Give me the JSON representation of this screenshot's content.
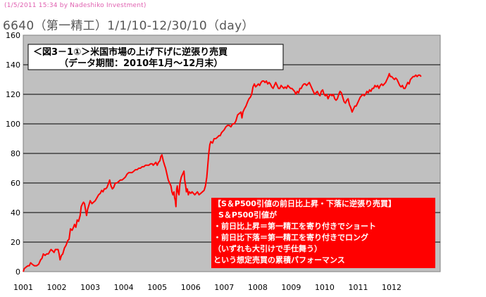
{
  "stamp": "(1/5/2011 15:34 by Nadeshiko Investment)",
  "title": "6640（第一精工）1/1/10-12/30/10（day）",
  "colors": {
    "plot_bg": "#c0c0c0",
    "line": "#ff0000",
    "note_bg": "#ff0000",
    "grid": "#000000"
  },
  "chart_data": {
    "type": "line",
    "title_box": [
      "＜図3－1①＞米国市場の上げ下げに逆張り売買",
      "（データ期間：2010年1月～12月末）"
    ],
    "x_ticks": [
      "1001",
      "1002",
      "1003",
      "1004",
      "1005",
      "1006",
      "1007",
      "1008",
      "1009",
      "1010",
      "1011",
      "1012"
    ],
    "y_ticks": [
      "0",
      "20",
      "40",
      "60",
      "80",
      "100",
      "120",
      "140",
      "160"
    ],
    "ylim": [
      0,
      160
    ],
    "xlim": [
      1,
      13.45
    ],
    "grid": "horizontal",
    "note": [
      "【S＆P500引値の前日比上昇・下落に逆張り売買】",
      "S＆P500引値が",
      "・前日比上昇＝第一精工を寄り付きでショート",
      "・前日比下落＝第一精工を寄り付きでロング",
      "（いずれも大引けで手仕舞う）",
      "という想定売買の累積パフォーマンス"
    ],
    "series": [
      {
        "points": [
          [
            1.0,
            0
          ],
          [
            1.03,
            2
          ],
          [
            1.08,
            3
          ],
          [
            1.14,
            4
          ],
          [
            1.18,
            4
          ],
          [
            1.22,
            6
          ],
          [
            1.27,
            5
          ],
          [
            1.33,
            4
          ],
          [
            1.4,
            4
          ],
          [
            1.46,
            5
          ],
          [
            1.52,
            8
          ],
          [
            1.56,
            9
          ],
          [
            1.6,
            12
          ],
          [
            1.65,
            11
          ],
          [
            1.7,
            12
          ],
          [
            1.75,
            12
          ],
          [
            1.8,
            14
          ],
          [
            1.83,
            15
          ],
          [
            1.88,
            14
          ],
          [
            1.92,
            13
          ],
          [
            1.96,
            15
          ],
          [
            2.0,
            15
          ],
          [
            2.04,
            15
          ],
          [
            2.07,
            12
          ],
          [
            2.1,
            8
          ],
          [
            2.14,
            11
          ],
          [
            2.18,
            12
          ],
          [
            2.23,
            16
          ],
          [
            2.28,
            18
          ],
          [
            2.33,
            21
          ],
          [
            2.37,
            22
          ],
          [
            2.41,
            29
          ],
          [
            2.46,
            28
          ],
          [
            2.5,
            30
          ],
          [
            2.53,
            32
          ],
          [
            2.57,
            30
          ],
          [
            2.61,
            35
          ],
          [
            2.65,
            34
          ],
          [
            2.7,
            38
          ],
          [
            2.73,
            44
          ],
          [
            2.77,
            46
          ],
          [
            2.8,
            47
          ],
          [
            2.83,
            46
          ],
          [
            2.86,
            42
          ],
          [
            2.89,
            38
          ],
          [
            2.92,
            42
          ],
          [
            2.96,
            45
          ],
          [
            3.0,
            48
          ],
          [
            3.05,
            46
          ],
          [
            3.1,
            47
          ],
          [
            3.15,
            48
          ],
          [
            3.2,
            50
          ],
          [
            3.25,
            52
          ],
          [
            3.3,
            53
          ],
          [
            3.34,
            55
          ],
          [
            3.38,
            54
          ],
          [
            3.42,
            56
          ],
          [
            3.46,
            56
          ],
          [
            3.5,
            57
          ],
          [
            3.55,
            60
          ],
          [
            3.58,
            62
          ],
          [
            3.62,
            58
          ],
          [
            3.66,
            56
          ],
          [
            3.7,
            57
          ],
          [
            3.75,
            60
          ],
          [
            3.8,
            60
          ],
          [
            3.85,
            61
          ],
          [
            3.9,
            62
          ],
          [
            3.95,
            62
          ],
          [
            4.0,
            63
          ],
          [
            4.05,
            64
          ],
          [
            4.1,
            66
          ],
          [
            4.15,
            67
          ],
          [
            4.2,
            67
          ],
          [
            4.25,
            67
          ],
          [
            4.3,
            68
          ],
          [
            4.35,
            69
          ],
          [
            4.4,
            69
          ],
          [
            4.45,
            70
          ],
          [
            4.5,
            70
          ],
          [
            4.55,
            71
          ],
          [
            4.6,
            71
          ],
          [
            4.65,
            72
          ],
          [
            4.7,
            72
          ],
          [
            4.75,
            72
          ],
          [
            4.8,
            73
          ],
          [
            4.85,
            73
          ],
          [
            4.88,
            72
          ],
          [
            4.92,
            73
          ],
          [
            4.96,
            74
          ],
          [
            5.0,
            72
          ],
          [
            5.04,
            74
          ],
          [
            5.08,
            75
          ],
          [
            5.11,
            78
          ],
          [
            5.14,
            79
          ],
          [
            5.18,
            75
          ],
          [
            5.22,
            72
          ],
          [
            5.25,
            70
          ],
          [
            5.29,
            66
          ],
          [
            5.33,
            62
          ],
          [
            5.37,
            60
          ],
          [
            5.41,
            58
          ],
          [
            5.44,
            54
          ],
          [
            5.47,
            52
          ],
          [
            5.5,
            54
          ],
          [
            5.52,
            50
          ],
          [
            5.54,
            48
          ],
          [
            5.56,
            44
          ],
          [
            5.58,
            56
          ],
          [
            5.6,
            58
          ],
          [
            5.62,
            54
          ],
          [
            5.65,
            52
          ],
          [
            5.68,
            60
          ],
          [
            5.72,
            64
          ],
          [
            5.76,
            66
          ],
          [
            5.8,
            68
          ],
          [
            5.82,
            62
          ],
          [
            5.85,
            58
          ],
          [
            5.87,
            54
          ],
          [
            5.9,
            56
          ],
          [
            5.93,
            52
          ],
          [
            5.96,
            54
          ],
          [
            6.0,
            53
          ],
          [
            6.04,
            54
          ],
          [
            6.08,
            53
          ],
          [
            6.12,
            52
          ],
          [
            6.16,
            53
          ],
          [
            6.2,
            54
          ],
          [
            6.25,
            52
          ],
          [
            6.3,
            53
          ],
          [
            6.35,
            54
          ],
          [
            6.4,
            55
          ],
          [
            6.44,
            58
          ],
          [
            6.48,
            64
          ],
          [
            6.51,
            72
          ],
          [
            6.54,
            80
          ],
          [
            6.57,
            86
          ],
          [
            6.6,
            88
          ],
          [
            6.65,
            87
          ],
          [
            6.7,
            90
          ],
          [
            6.75,
            90
          ],
          [
            6.8,
            91
          ],
          [
            6.84,
            92
          ],
          [
            6.88,
            92
          ],
          [
            6.92,
            94
          ],
          [
            6.96,
            95
          ],
          [
            7.0,
            96
          ],
          [
            7.05,
            98
          ],
          [
            7.1,
            99
          ],
          [
            7.15,
            99
          ],
          [
            7.2,
            98
          ],
          [
            7.25,
            100
          ],
          [
            7.3,
            100
          ],
          [
            7.35,
            102
          ],
          [
            7.4,
            106
          ],
          [
            7.45,
            107
          ],
          [
            7.5,
            108
          ],
          [
            7.53,
            104
          ],
          [
            7.56,
            108
          ],
          [
            7.6,
            110
          ],
          [
            7.65,
            112
          ],
          [
            7.7,
            115
          ],
          [
            7.74,
            117
          ],
          [
            7.78,
            118
          ],
          [
            7.82,
            120
          ],
          [
            7.86,
            125
          ],
          [
            7.9,
            127
          ],
          [
            7.94,
            125
          ],
          [
            7.98,
            126
          ],
          [
            8.02,
            127
          ],
          [
            8.06,
            126
          ],
          [
            8.1,
            128
          ],
          [
            8.14,
            129
          ],
          [
            8.18,
            129
          ],
          [
            8.22,
            128
          ],
          [
            8.26,
            129
          ],
          [
            8.3,
            127
          ],
          [
            8.34,
            128
          ],
          [
            8.38,
            127
          ],
          [
            8.42,
            125
          ],
          [
            8.46,
            124
          ],
          [
            8.5,
            126
          ],
          [
            8.54,
            128
          ],
          [
            8.58,
            126
          ],
          [
            8.62,
            124
          ],
          [
            8.66,
            124
          ],
          [
            8.7,
            126
          ],
          [
            8.74,
            125
          ],
          [
            8.78,
            124
          ],
          [
            8.82,
            125
          ],
          [
            8.86,
            124
          ],
          [
            8.9,
            126
          ],
          [
            8.94,
            125
          ],
          [
            8.98,
            124
          ],
          [
            9.02,
            124
          ],
          [
            9.06,
            123
          ],
          [
            9.1,
            122
          ],
          [
            9.14,
            120
          ],
          [
            9.18,
            122
          ],
          [
            9.22,
            121
          ],
          [
            9.26,
            124
          ],
          [
            9.3,
            124
          ],
          [
            9.34,
            126
          ],
          [
            9.38,
            127
          ],
          [
            9.42,
            127
          ],
          [
            9.46,
            126
          ],
          [
            9.5,
            127
          ],
          [
            9.54,
            128
          ],
          [
            9.58,
            126
          ],
          [
            9.62,
            124
          ],
          [
            9.66,
            122
          ],
          [
            9.7,
            120
          ],
          [
            9.74,
            121
          ],
          [
            9.78,
            122
          ],
          [
            9.82,
            120
          ],
          [
            9.86,
            119
          ],
          [
            9.9,
            122
          ],
          [
            9.94,
            123
          ],
          [
            9.98,
            120
          ],
          [
            10.02,
            119
          ],
          [
            10.06,
            120
          ],
          [
            10.1,
            117
          ],
          [
            10.14,
            119
          ],
          [
            10.18,
            120
          ],
          [
            10.22,
            119
          ],
          [
            10.26,
            120
          ],
          [
            10.3,
            117
          ],
          [
            10.34,
            116
          ],
          [
            10.38,
            117
          ],
          [
            10.42,
            120
          ],
          [
            10.46,
            122
          ],
          [
            10.5,
            121
          ],
          [
            10.54,
            118
          ],
          [
            10.58,
            115
          ],
          [
            10.62,
            114
          ],
          [
            10.66,
            116
          ],
          [
            10.7,
            117
          ],
          [
            10.74,
            113
          ],
          [
            10.78,
            111
          ],
          [
            10.82,
            108
          ],
          [
            10.86,
            110
          ],
          [
            10.9,
            112
          ],
          [
            10.94,
            112
          ],
          [
            10.98,
            114
          ],
          [
            11.02,
            116
          ],
          [
            11.06,
            118
          ],
          [
            11.1,
            119
          ],
          [
            11.14,
            120
          ],
          [
            11.18,
            119
          ],
          [
            11.22,
            120
          ],
          [
            11.26,
            122
          ],
          [
            11.3,
            121
          ],
          [
            11.34,
            123
          ],
          [
            11.38,
            122
          ],
          [
            11.42,
            124
          ],
          [
            11.46,
            124
          ],
          [
            11.5,
            126
          ],
          [
            11.54,
            125
          ],
          [
            11.58,
            126
          ],
          [
            11.62,
            124
          ],
          [
            11.66,
            126
          ],
          [
            11.7,
            127
          ],
          [
            11.74,
            126
          ],
          [
            11.78,
            127
          ],
          [
            11.82,
            128
          ],
          [
            11.86,
            130
          ],
          [
            11.9,
            132
          ],
          [
            11.93,
            134
          ],
          [
            11.96,
            132
          ],
          [
            12.0,
            132
          ],
          [
            12.04,
            131
          ],
          [
            12.08,
            130
          ],
          [
            12.12,
            131
          ],
          [
            12.16,
            130
          ],
          [
            12.2,
            128
          ],
          [
            12.24,
            126
          ],
          [
            12.28,
            125
          ],
          [
            12.32,
            126
          ],
          [
            12.36,
            124
          ],
          [
            12.4,
            124
          ],
          [
            12.44,
            126
          ],
          [
            12.48,
            128
          ],
          [
            12.52,
            127
          ],
          [
            12.56,
            130
          ],
          [
            12.6,
            131
          ],
          [
            12.64,
            132
          ],
          [
            12.68,
            132
          ],
          [
            12.72,
            133
          ],
          [
            12.76,
            132
          ],
          [
            12.8,
            133
          ],
          [
            12.84,
            133
          ],
          [
            12.88,
            132
          ]
        ]
      }
    ]
  }
}
